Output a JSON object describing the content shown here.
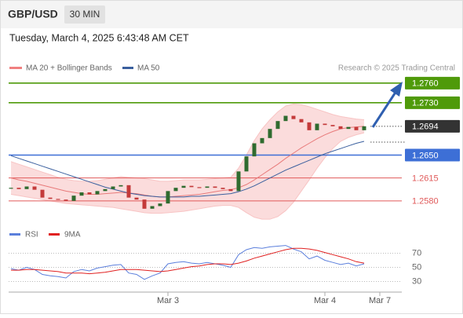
{
  "chart_data": [
    {
      "type": "candlestick",
      "symbol": "GBP/USD",
      "timeframe": "30 MIN",
      "timestamp": "Tuesday, March 4, 2025 6:43:48 AM CET",
      "legend": [
        "MA 20 + Bollinger Bands",
        "MA 50"
      ],
      "credit": "Research © 2025 Trading Central",
      "ylim": [
        1.2545,
        1.2779
      ],
      "up_color": "#2f6b2f",
      "down_color": "#c43a3a",
      "close": [
        1.26,
        1.2598,
        1.2602,
        1.2597,
        1.2585,
        1.2583,
        1.2582,
        1.258,
        1.2588,
        1.2593,
        1.259,
        1.2595,
        1.2598,
        1.2602,
        1.2604,
        1.2585,
        1.2582,
        1.2568,
        1.2572,
        1.2576,
        1.2595,
        1.26,
        1.2603,
        1.2601,
        1.26,
        1.2602,
        1.26,
        1.2598,
        1.2595,
        1.2625,
        1.2648,
        1.2668,
        1.2676,
        1.269,
        1.2702,
        1.271,
        1.2705,
        1.27,
        1.2688,
        1.2698,
        1.2696,
        1.2694,
        1.269,
        1.2693,
        1.2688,
        1.2694
      ],
      "series": [
        {
          "name": "MA 20",
          "color": "#e87a7a",
          "values": [
            1.2615,
            1.2612,
            1.261,
            1.2607,
            1.2604,
            1.2601,
            1.2598,
            1.2595,
            1.2593,
            1.2591,
            1.259,
            1.259,
            1.2591,
            1.2592,
            1.2593,
            1.2592,
            1.2591,
            1.2589,
            1.2587,
            1.2586,
            1.2586,
            1.2587,
            1.2588,
            1.2589,
            1.259,
            1.2592,
            1.2594,
            1.2596,
            1.2597,
            1.26,
            1.2605,
            1.2612,
            1.262,
            1.2628,
            1.2636,
            1.2645,
            1.2653,
            1.2661,
            1.2668,
            1.2675,
            1.2681,
            1.2686,
            1.269,
            1.2692,
            1.2693,
            1.2694
          ]
        },
        {
          "name": "MA 50",
          "color": "#3a5f9e",
          "values": [
            1.2649,
            1.2645,
            1.2641,
            1.2637,
            1.2633,
            1.2629,
            1.2625,
            1.2621,
            1.2617,
            1.2613,
            1.2609,
            1.2605,
            1.2601,
            1.2598,
            1.2595,
            1.2592,
            1.259,
            1.2588,
            1.2587,
            1.2586,
            1.2586,
            1.2586,
            1.2586,
            1.2587,
            1.2587,
            1.2588,
            1.2589,
            1.259,
            1.2591,
            1.2594,
            1.2598,
            1.2603,
            1.2609,
            1.2615,
            1.2621,
            1.2627,
            1.2632,
            1.2637,
            1.2642,
            1.2647,
            1.2652,
            1.2656,
            1.266,
            1.2664,
            1.2668,
            1.2671
          ]
        }
      ],
      "bands": {
        "color": "#f8c4c4",
        "upper": [
          1.264,
          1.2636,
          1.2632,
          1.2628,
          1.2624,
          1.262,
          1.2616,
          1.2613,
          1.2611,
          1.261,
          1.261,
          1.2611,
          1.2613,
          1.2615,
          1.2617,
          1.2616,
          1.2615,
          1.2614,
          1.2612,
          1.261,
          1.261,
          1.2611,
          1.2612,
          1.2612,
          1.2612,
          1.2613,
          1.2614,
          1.2615,
          1.2616,
          1.263,
          1.265,
          1.2672,
          1.269,
          1.2704,
          1.2716,
          1.2725,
          1.2728,
          1.2727,
          1.2724,
          1.272,
          1.2716,
          1.2712,
          1.2709,
          1.2707,
          1.2705,
          1.2704
        ],
        "lower": [
          1.259,
          1.2588,
          1.2586,
          1.2584,
          1.2582,
          1.258,
          1.2578,
          1.2576,
          1.2575,
          1.2574,
          1.2573,
          1.2572,
          1.2571,
          1.257,
          1.2568,
          1.2566,
          1.2564,
          1.2562,
          1.2561,
          1.2561,
          1.2562,
          1.2563,
          1.2564,
          1.2566,
          1.2568,
          1.257,
          1.2572,
          1.2573,
          1.2573,
          1.257,
          1.2562,
          1.2555,
          1.2552,
          1.2552,
          1.2556,
          1.2565,
          1.2578,
          1.2595,
          1.2612,
          1.263,
          1.2646,
          1.266,
          1.2671,
          1.2677,
          1.2681,
          1.2684
        ]
      },
      "levels": [
        {
          "value": 1.276,
          "label": "1.2760",
          "color": "#4f9a0a",
          "style": "box"
        },
        {
          "value": 1.273,
          "label": "1.2730",
          "color": "#4f9a0a",
          "style": "box"
        },
        {
          "value": 1.2694,
          "label": "1.2694",
          "color": "#333333",
          "style": "current"
        },
        {
          "value": 1.265,
          "label": "1.2650",
          "color": "#3d6fd6",
          "style": "box"
        },
        {
          "value": 1.2615,
          "label": "1.2615",
          "color": "#e05a5a",
          "style": "text"
        },
        {
          "value": 1.258,
          "label": "1.2580",
          "color": "#e05a5a",
          "style": "text"
        }
      ],
      "xlabels": [
        {
          "index": 20,
          "label": "Mar 3"
        },
        {
          "index": 40,
          "label": "Mar 4"
        },
        {
          "index": 47,
          "label": "Mar 7"
        }
      ]
    },
    {
      "type": "line",
      "ylim": [
        15,
        95
      ],
      "yticks": [
        70,
        50,
        30
      ],
      "series": [
        {
          "name": "RSI",
          "color": "#5b7fdc",
          "values": [
            48,
            46,
            50,
            47,
            40,
            38,
            37,
            35,
            44,
            47,
            45,
            49,
            51,
            53,
            54,
            42,
            40,
            33,
            38,
            42,
            55,
            57,
            58,
            56,
            55,
            57,
            55,
            53,
            50,
            68,
            75,
            78,
            77,
            79,
            80,
            81,
            76,
            72,
            62,
            66,
            60,
            57,
            54,
            56,
            52,
            55
          ]
        },
        {
          "name": "9MA",
          "color": "#e02020",
          "values": [
            46,
            46,
            47,
            47,
            46,
            45,
            44,
            42,
            42,
            42,
            41,
            42,
            43,
            45,
            47,
            47,
            47,
            46,
            45,
            44,
            45,
            47,
            49,
            51,
            52,
            54,
            55,
            55,
            54,
            56,
            59,
            63,
            66,
            69,
            72,
            75,
            77,
            77,
            76,
            74,
            71,
            68,
            65,
            62,
            58,
            56
          ]
        }
      ]
    }
  ]
}
